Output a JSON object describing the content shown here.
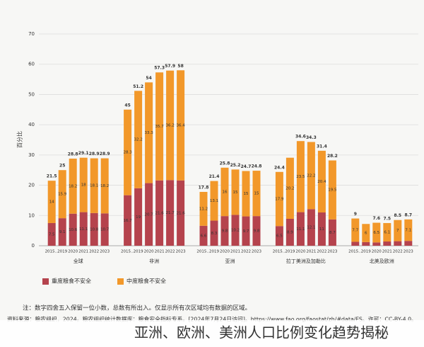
{
  "chart_data": {
    "type": "stacked-bar",
    "ylabel": "百分比",
    "groups": [
      "全球",
      "非洲",
      "亚洲",
      "拉丁美洲及加勒比",
      "北美及欧洲"
    ],
    "x_labels": [
      "2015...",
      "2019",
      "2020",
      "2021",
      "2022",
      "2023"
    ],
    "series": [
      {
        "name": "重度粮食不安全",
        "color": "#b5434d",
        "values": [
          [
            7.5,
            9.1,
            10.6,
            11.1,
            10.8,
            10.7
          ],
          [
            16.7,
            19.0,
            20.7,
            21.6,
            21.7,
            21.6
          ],
          [
            6.6,
            8.3,
            9.8,
            10.2,
            9.7,
            9.8
          ],
          [
            6.5,
            8.9,
            11.1,
            12.1,
            11.0,
            8.7
          ],
          [
            1.3,
            1.2,
            1.1,
            1.4,
            1.5,
            1.6
          ]
        ]
      },
      {
        "name": "中度粮食不安全",
        "color": "#f2982a",
        "values": [
          [
            14.0,
            15.9,
            18.2,
            18.0,
            18.1,
            18.2
          ],
          [
            28.3,
            32.2,
            33.3,
            35.7,
            36.2,
            36.4
          ],
          [
            11.2,
            13.1,
            16.0,
            15.0,
            15.0,
            15.0
          ],
          [
            17.9,
            20.2,
            23.5,
            22.2,
            20.4,
            19.5
          ],
          [
            7.7,
            6.0,
            6.5,
            6.1,
            7.0,
            7.1
          ]
        ]
      }
    ],
    "totals": [
      [
        21.5,
        25.0,
        28.8,
        29.1,
        28.9,
        28.9
      ],
      [
        45.0,
        51.2,
        54.0,
        57.3,
        57.9,
        58.0
      ],
      [
        17.8,
        21.4,
        25.8,
        25.2,
        24.7,
        24.8
      ],
      [
        24.4,
        null,
        34.6,
        34.3,
        31.4,
        28.2
      ],
      [
        9.0,
        null,
        7.6,
        7.5,
        8.5,
        8.7
      ]
    ],
    "ylim": [
      0,
      70
    ],
    "yticks": [
      0,
      10,
      20,
      30,
      40,
      50,
      60,
      70
    ],
    "grid": true,
    "note": "注：数字四舍五入保留一位小数，总数有所出入。仅显示所有次区域均有数据的区域。",
    "source": "资料来源：粮农组织，2024。粮农组织统计数据库：粮食安全指标专系。[2024年7月24日访问]。https://www.fao.org/faostat/zh/#data/FS。许可：CC-BY-4.0。",
    "caption": "亚洲、欧洲、美洲人口比例变化趋势揭秘"
  }
}
